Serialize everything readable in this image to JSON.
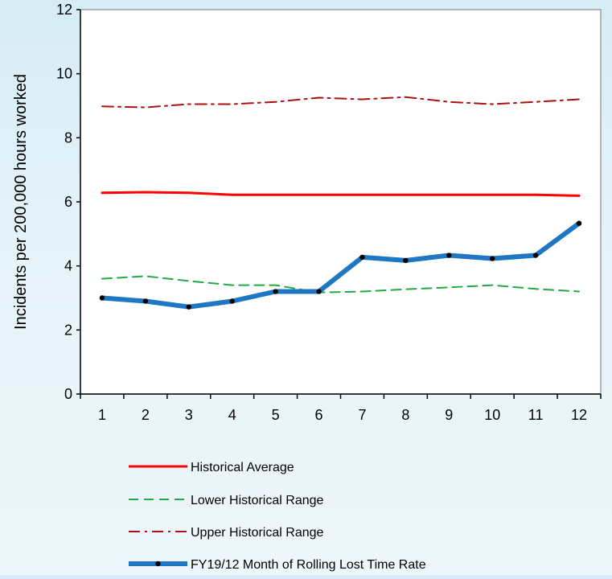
{
  "chart_data": {
    "type": "line",
    "title": "",
    "xlabel": "",
    "ylabel": "Incidents per 200,000 hours worked",
    "categories": [
      "1",
      "2",
      "3",
      "4",
      "5",
      "6",
      "7",
      "8",
      "9",
      "10",
      "11",
      "12"
    ],
    "ylim": [
      0,
      12
    ],
    "yticks": [
      "0",
      "2",
      "4",
      "6",
      "8",
      "10",
      "12"
    ],
    "grid": false,
    "legend_position": "bottom",
    "series": [
      {
        "name": "Historical Average",
        "color": "#ff0000",
        "style": "solid",
        "values": [
          6.28,
          6.3,
          6.28,
          6.22,
          6.22,
          6.22,
          6.22,
          6.22,
          6.22,
          6.22,
          6.22,
          6.19
        ]
      },
      {
        "name": "Lower Historical Range",
        "color": "#22aa44",
        "style": "dashed",
        "values": [
          3.6,
          3.68,
          3.53,
          3.4,
          3.4,
          3.17,
          3.2,
          3.27,
          3.33,
          3.4,
          3.28,
          3.2
        ]
      },
      {
        "name": "Upper Historical Range",
        "color": "#aa1111",
        "style": "dashdot",
        "values": [
          8.98,
          8.95,
          9.05,
          9.05,
          9.12,
          9.25,
          9.2,
          9.27,
          9.12,
          9.05,
          9.12,
          9.2
        ]
      },
      {
        "name": "FY19/12 Month of Rolling Lost Time Rate",
        "color": "#1f77c4",
        "style": "solid-thick-markers",
        "values": [
          3.0,
          2.9,
          2.72,
          2.9,
          3.2,
          3.2,
          4.27,
          4.17,
          4.33,
          4.23,
          4.33,
          5.33
        ]
      }
    ]
  }
}
